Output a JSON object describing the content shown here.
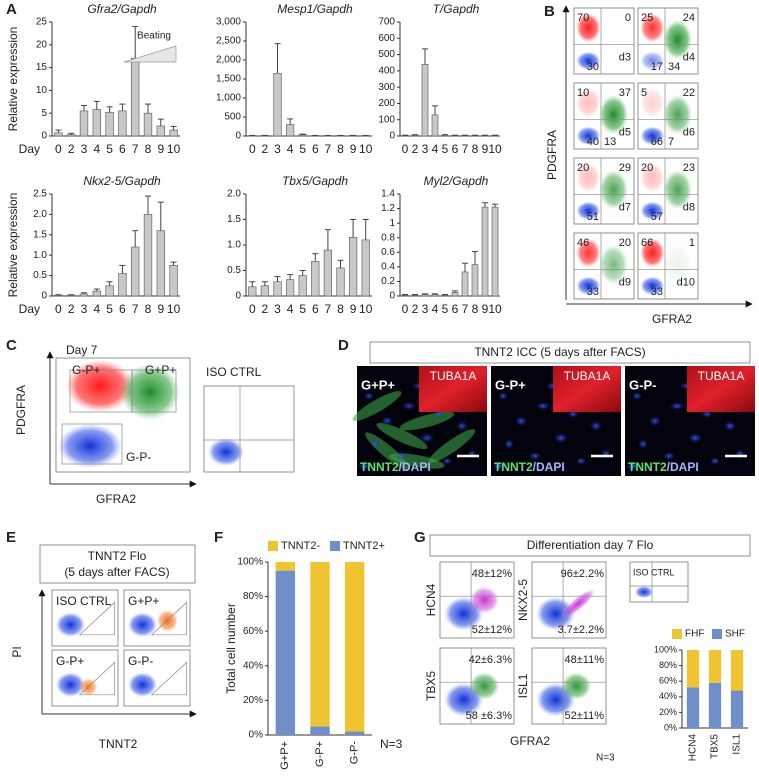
{
  "chart_data": [
    {
      "type": "bar",
      "title": "Gfra2/Gapdh",
      "ylabel": "Relative expression",
      "xlabel": "Day",
      "annotation": "Beating",
      "categories": [
        "0",
        "2",
        "3",
        "4",
        "5",
        "6",
        "7",
        "8",
        "9",
        "10"
      ],
      "values": [
        0.7,
        0.3,
        5.5,
        5.8,
        5.2,
        5.5,
        17,
        5,
        2.2,
        1.3
      ],
      "errors": [
        0.6,
        0.3,
        1.2,
        1.8,
        1.2,
        1.5,
        7,
        2,
        1.5,
        0.8
      ],
      "color": "#c8c8c8",
      "ylim": [
        0,
        25
      ],
      "yticks": [
        0,
        5,
        10,
        15,
        20,
        25
      ]
    },
    {
      "type": "bar",
      "title": "Mesp1/Gapdh",
      "categories": [
        "0",
        "2",
        "3",
        "4",
        "5",
        "6",
        "7",
        "8",
        "9",
        "10"
      ],
      "values": [
        10,
        10,
        1650,
        300,
        30,
        10,
        10,
        10,
        10,
        10
      ],
      "errors": [
        5,
        5,
        780,
        150,
        20,
        5,
        5,
        5,
        5,
        5
      ],
      "color": "#c8c8c8",
      "ylim": [
        0,
        3000
      ],
      "yticks": [
        0,
        500,
        {
          "value": 1000,
          "label": "1,000"
        },
        {
          "value": 1500,
          "label": "1,500"
        },
        {
          "value": 2000,
          "label": "2,000"
        },
        {
          "value": 2500,
          "label": "2,500"
        },
        {
          "value": 3000,
          "label": "3,000"
        }
      ]
    },
    {
      "type": "bar",
      "title": "T/Gapdh",
      "categories": [
        "0",
        "2",
        "3",
        "4",
        "5",
        "6",
        "7",
        "8",
        "9",
        "10"
      ],
      "values": [
        3,
        5,
        440,
        130,
        5,
        3,
        3,
        3,
        3,
        3
      ],
      "errors": [
        2,
        3,
        95,
        55,
        3,
        2,
        2,
        2,
        2,
        2
      ],
      "color": "#c8c8c8",
      "ylim": [
        0,
        700
      ],
      "yticks": [
        0,
        100,
        200,
        300,
        400,
        500,
        600,
        700
      ]
    },
    {
      "type": "bar",
      "title": "Nkx2-5/Gapdh",
      "ylabel": "Relative expression",
      "xlabel": "Day",
      "categories": [
        "0",
        "2",
        "3",
        "4",
        "5",
        "6",
        "7",
        "8",
        "9",
        "10"
      ],
      "values": [
        0.02,
        0.02,
        0.05,
        0.12,
        0.25,
        0.55,
        1.2,
        2.0,
        1.6,
        0.75
      ],
      "errors": [
        0.01,
        0.01,
        0.03,
        0.05,
        0.1,
        0.2,
        0.4,
        0.45,
        0.7,
        0.08
      ],
      "color": "#c8c8c8",
      "ylim": [
        0,
        2.5
      ],
      "yticks": [
        0,
        0.5,
        {
          "value": 1,
          "label": "1.0"
        },
        1.5,
        {
          "value": 2,
          "label": "2.0"
        },
        2.5
      ]
    },
    {
      "type": "bar",
      "title": "Tbx5/Gapdh",
      "categories": [
        "0",
        "2",
        "3",
        "4",
        "5",
        "6",
        "7",
        "8",
        "9",
        "10"
      ],
      "values": [
        0.18,
        0.2,
        0.28,
        0.32,
        0.4,
        0.68,
        0.9,
        0.55,
        1.15,
        1.1
      ],
      "errors": [
        0.1,
        0.08,
        0.1,
        0.1,
        0.1,
        0.15,
        0.4,
        0.15,
        0.35,
        0.4
      ],
      "color": "#c8c8c8",
      "ylim": [
        0,
        2
      ],
      "yticks": [
        0,
        0.5,
        {
          "value": 1,
          "label": "1.0"
        },
        1.5,
        {
          "value": 2,
          "label": "2.0"
        }
      ]
    },
    {
      "type": "bar",
      "title": "Myl2/Gapdh",
      "categories": [
        "0",
        "2",
        "3",
        "4",
        "5",
        "6",
        "7",
        "8",
        "9",
        "10"
      ],
      "values": [
        0.01,
        0.01,
        0.02,
        0.02,
        0.01,
        0.05,
        0.33,
        0.43,
        1.22,
        1.22
      ],
      "errors": [
        0.01,
        0.01,
        0.01,
        0.01,
        0.01,
        0.02,
        0.12,
        0.18,
        0.06,
        0.04
      ],
      "color": "#c8c8c8",
      "ylim": [
        0,
        1.4
      ],
      "yticks": [
        0,
        0.2,
        0.4,
        0.6,
        0.8,
        1,
        1.2,
        1.4
      ]
    },
    {
      "type": "stacked_bar",
      "ylabel": "Total cell number",
      "note": "N=3",
      "categories": [
        "G+P+",
        "G-P+",
        "G-P-"
      ],
      "series": [
        {
          "name": "TNNT2+",
          "color": "#6e8fc9",
          "values": [
            95,
            5,
            2
          ]
        },
        {
          "name": "TNNT2-",
          "color": "#f0c330",
          "values": [
            5,
            95,
            98
          ]
        }
      ],
      "ylim": [
        0,
        100
      ],
      "yticks": [
        {
          "value": 0,
          "label": "0%"
        },
        {
          "value": 20,
          "label": "20%"
        },
        {
          "value": 40,
          "label": "40%"
        },
        {
          "value": 60,
          "label": "60%"
        },
        {
          "value": 80,
          "label": "80%"
        },
        {
          "value": 100,
          "label": "100%"
        }
      ]
    },
    {
      "type": "stacked_bar",
      "categories": [
        "HCN4",
        "TBX5",
        "ISL1"
      ],
      "series": [
        {
          "name": "SHF",
          "color": "#6e8fc9",
          "values": [
            52,
            58,
            48
          ]
        },
        {
          "name": "FHF",
          "color": "#f0c330",
          "values": [
            48,
            42,
            52
          ]
        }
      ],
      "ylim": [
        0,
        100
      ],
      "yticks": [
        {
          "value": 0,
          "label": "0%"
        },
        {
          "value": 20,
          "label": "20%"
        },
        {
          "value": 40,
          "label": "40%"
        },
        {
          "value": 60,
          "label": "60%"
        },
        {
          "value": 80,
          "label": "80%"
        },
        {
          "value": 100,
          "label": "100%"
        }
      ]
    }
  ],
  "panel_labels": [
    "A",
    "B",
    "C",
    "D",
    "E",
    "F",
    "G"
  ],
  "panel_b": {
    "y_label": "PDGFRA",
    "x_label": "GFRA2",
    "plots": [
      {
        "day": "d3",
        "ul": 70,
        "ur": 0,
        "ll": 30
      },
      {
        "day": "d4",
        "ul": 25,
        "ur": 24,
        "ll": 17,
        "lr": 34
      },
      {
        "day": "d5",
        "ul": 10,
        "ur": 37,
        "ll": 40,
        "lr": 13
      },
      {
        "day": "d6",
        "ul": 5,
        "ur": 22,
        "ll": 66,
        "lr": 7
      },
      {
        "day": "d7",
        "ul": 20,
        "ur": 29,
        "ll": 51
      },
      {
        "day": "d8",
        "ul": 20,
        "ur": 23,
        "ll": 57
      },
      {
        "day": "d9",
        "ul": 46,
        "ur": 20,
        "ll": 33
      },
      {
        "day": "d10",
        "ul": 66,
        "ur": 1,
        "ll": 33
      }
    ]
  },
  "panel_c": {
    "title": "Day 7",
    "gates": [
      "G-P+",
      "G+P+",
      "G-P-"
    ],
    "iso": "ISO CTRL",
    "y_label": "PDGFRA",
    "x_label": "GFRA2"
  },
  "panel_d": {
    "title": "TNNT2 ICC (5 days after FACS)",
    "images": [
      {
        "label": "G+P+",
        "inset": "TUBA1A",
        "stain": "TNNT2",
        "counter": "/DAPI"
      },
      {
        "label": "G-P+",
        "inset": "TUBA1A",
        "stain": "TNNT2",
        "counter": "/DAPI"
      },
      {
        "label": "G-P-",
        "inset": "TUBA1A",
        "stain": "TNNT2",
        "counter": "/DAPI"
      }
    ]
  },
  "panel_e": {
    "title": [
      "TNNT2 Flo",
      "(5 days after FACS)"
    ],
    "plots": [
      "ISO CTRL",
      "G+P+",
      "G-P+",
      "G-P-"
    ],
    "y_label": "PI",
    "x_label": "TNNT2"
  },
  "panel_g": {
    "title": "Differentiation day 7 Flo",
    "plots": [
      {
        "marker": "HCN4",
        "upper": "48±12%",
        "lower": "52±12%"
      },
      {
        "marker": "NKX2-5",
        "upper": "96±2.2%",
        "lower": "3.7±2.2%"
      },
      {
        "marker": "TBX5",
        "upper": "42±6.3%",
        "lower": "58 ±6.3%"
      },
      {
        "marker": "ISL1",
        "upper": "48±11%",
        "lower": "52±11%"
      }
    ],
    "iso": "ISO CTRL",
    "x_label": "GFRA2",
    "note": "N=3"
  }
}
